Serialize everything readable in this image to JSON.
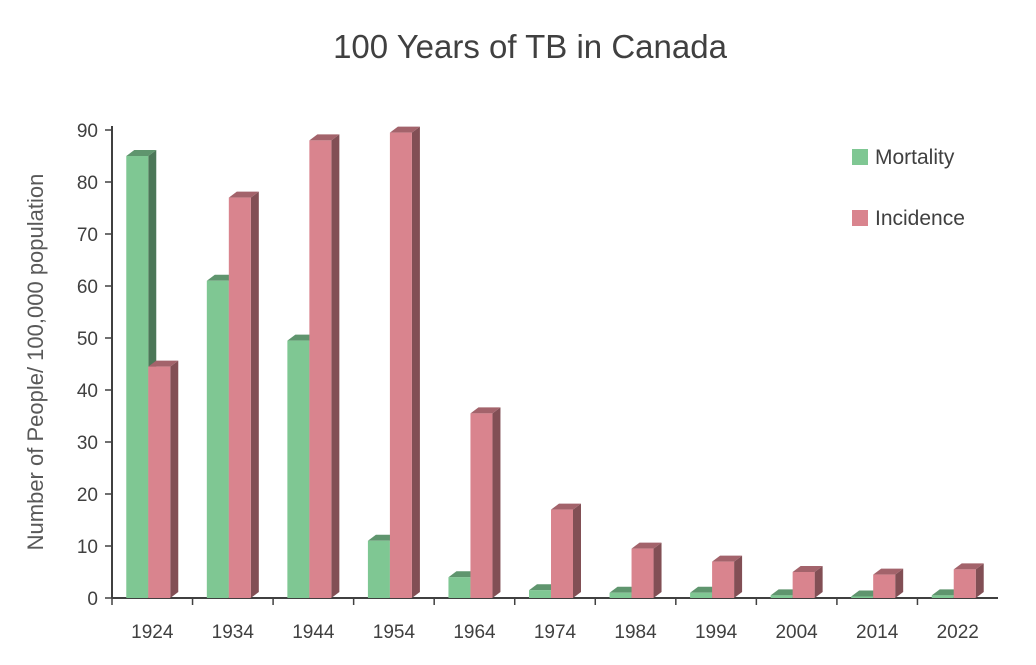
{
  "chart_data": {
    "type": "bar",
    "title": "100 Years of TB in Canada",
    "xlabel": "",
    "ylabel": "Number of People/ 100,000 population",
    "ylim": [
      0,
      90
    ],
    "yticks": [
      0,
      10,
      20,
      30,
      40,
      50,
      60,
      70,
      80,
      90
    ],
    "categories": [
      "1924",
      "1934",
      "1944",
      "1954",
      "1964",
      "1974",
      "1984",
      "1994",
      "2004",
      "2014",
      "2022"
    ],
    "series": [
      {
        "name": "Mortality",
        "color": "#7fc793",
        "values": [
          85,
          61,
          49.5,
          11,
          4,
          1.5,
          1,
          1,
          0.5,
          0.3,
          0.5
        ]
      },
      {
        "name": "Incidence",
        "color": "#d9848e",
        "values": [
          44.5,
          77,
          88,
          89.5,
          35.5,
          17,
          9.5,
          7,
          5,
          4.5,
          5.5
        ]
      }
    ],
    "legend": "top-right",
    "grid": false
  }
}
